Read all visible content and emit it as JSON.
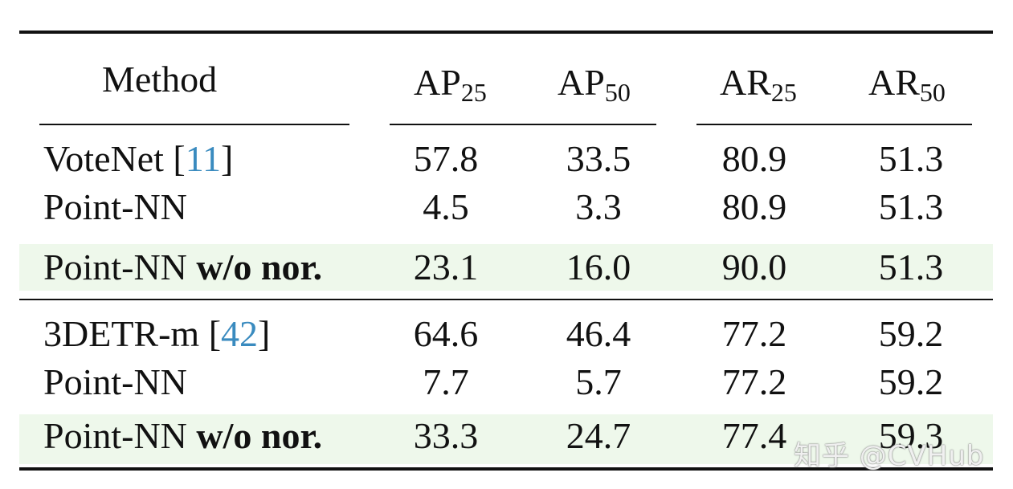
{
  "header": {
    "method": "Method",
    "cols": [
      {
        "base": "AP",
        "sub": "25"
      },
      {
        "base": "AP",
        "sub": "50"
      },
      {
        "base": "AR",
        "sub": "25"
      },
      {
        "base": "AR",
        "sub": "50"
      }
    ]
  },
  "groups": [
    {
      "rows": [
        {
          "prefix": "VoteNet [",
          "ref": "11",
          "suffix": "]",
          "bold": "",
          "values": [
            "57.8",
            "33.5",
            "80.9",
            "51.3"
          ],
          "highlight": false
        },
        {
          "prefix": "Point-NN",
          "ref": "",
          "suffix": "",
          "bold": "",
          "values": [
            "4.5",
            "3.3",
            "80.9",
            "51.3"
          ],
          "highlight": false
        },
        {
          "prefix": "Point-NN ",
          "ref": "",
          "suffix": "",
          "bold": "w/o nor.",
          "values": [
            "23.1",
            "16.0",
            "90.0",
            "51.3"
          ],
          "highlight": true
        }
      ]
    },
    {
      "rows": [
        {
          "prefix": "3DETR-m [",
          "ref": "42",
          "suffix": "]",
          "bold": "",
          "values": [
            "64.6",
            "46.4",
            "77.2",
            "59.2"
          ],
          "highlight": false
        },
        {
          "prefix": "Point-NN",
          "ref": "",
          "suffix": "",
          "bold": "",
          "values": [
            "7.7",
            "5.7",
            "77.2",
            "59.2"
          ],
          "highlight": false
        },
        {
          "prefix": "Point-NN ",
          "ref": "",
          "suffix": "",
          "bold": "w/o nor.",
          "values": [
            "33.3",
            "24.7",
            "77.4",
            "59.3"
          ],
          "highlight": true
        }
      ]
    }
  ],
  "watermark": "知乎 @CVHub"
}
